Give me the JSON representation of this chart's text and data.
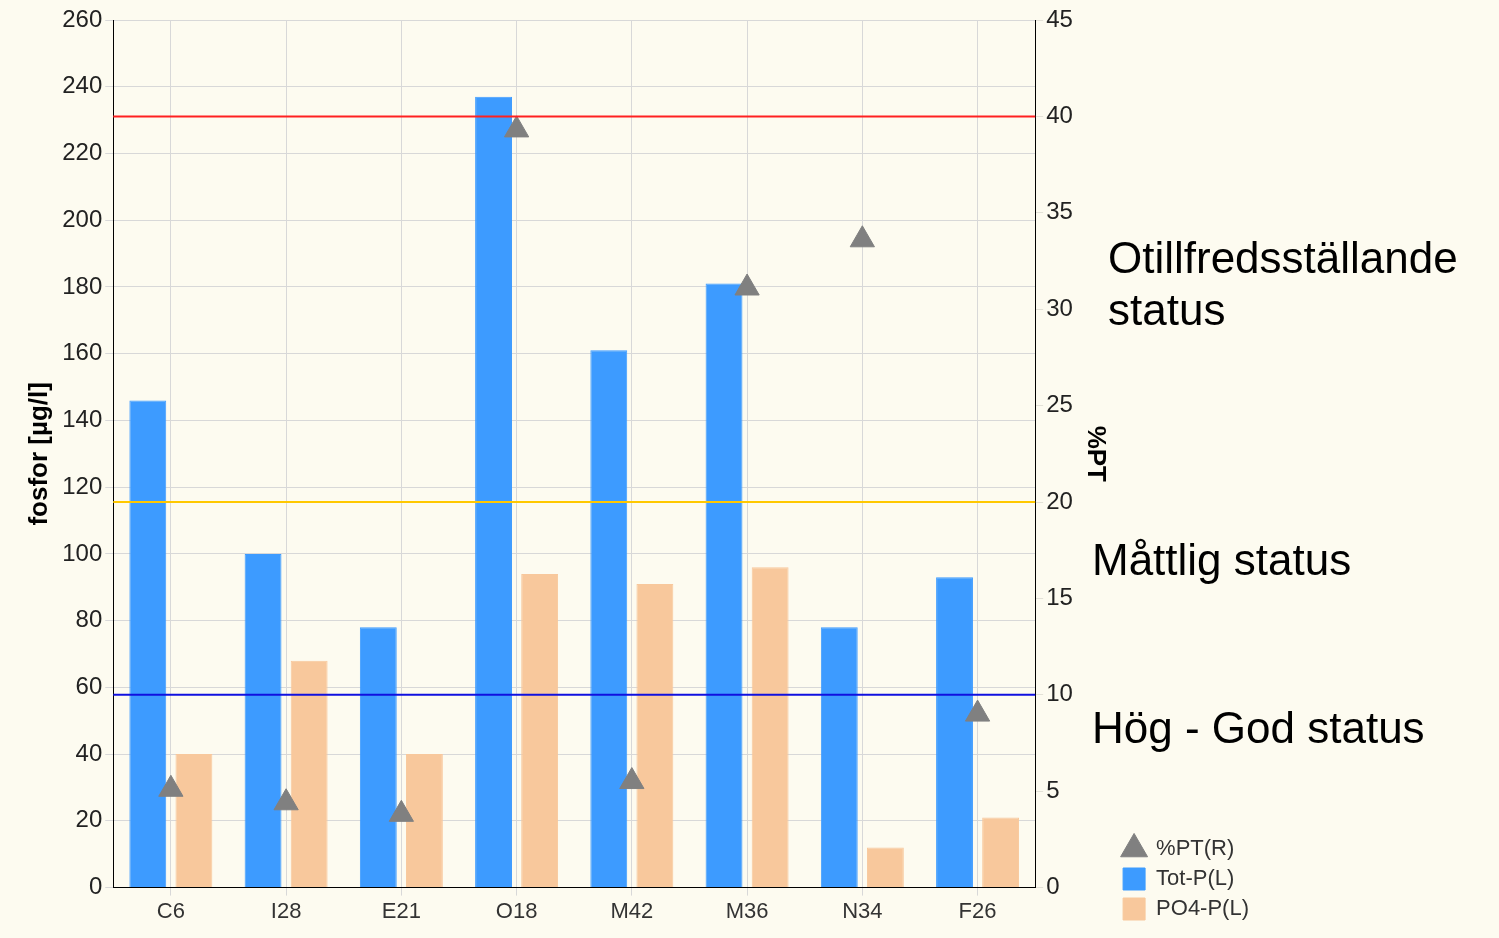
{
  "chart_data": {
    "type": "bar",
    "categories": [
      "C6",
      "I28",
      "E21",
      "O18",
      "M42",
      "M36",
      "N34",
      "F26"
    ],
    "series": [
      {
        "name": "Tot-P(L)",
        "color": "#3d9bff",
        "values": [
          146,
          100,
          78,
          237,
          161,
          181,
          78,
          93
        ]
      },
      {
        "name": "PO4-P(L)",
        "color": "#f8c89c",
        "values": [
          40,
          68,
          40,
          94,
          91,
          96,
          12,
          21
        ]
      },
      {
        "name": "%PT(R)",
        "type": "scatter",
        "axis": "y2",
        "color": "#808080",
        "marker": "triangle",
        "values": [
          5.1,
          4.4,
          3.8,
          39.3,
          5.5,
          31.1,
          33.6,
          9.0
        ]
      }
    ],
    "ylabel": "fosfor [µg/l]",
    "y2label": "%PT",
    "ylim": [
      0,
      260
    ],
    "yticks": [
      0,
      20,
      40,
      60,
      80,
      100,
      120,
      140,
      160,
      180,
      200,
      220,
      240,
      260
    ],
    "y2lim": [
      0,
      45
    ],
    "y2ticks": [
      0,
      5,
      10,
      15,
      20,
      25,
      30,
      35,
      40,
      45
    ],
    "ref_lines": [
      {
        "axis": "y2",
        "value": 40,
        "color": "#ff2020"
      },
      {
        "axis": "y2",
        "value": 20,
        "color": "#ffc800"
      },
      {
        "axis": "y2",
        "value": 10,
        "color": "#1010e0"
      }
    ],
    "annotations": [
      "Otillfredsställande status",
      "Måttlig status",
      "Hög - God status"
    ],
    "grid": true,
    "legend": "right"
  }
}
